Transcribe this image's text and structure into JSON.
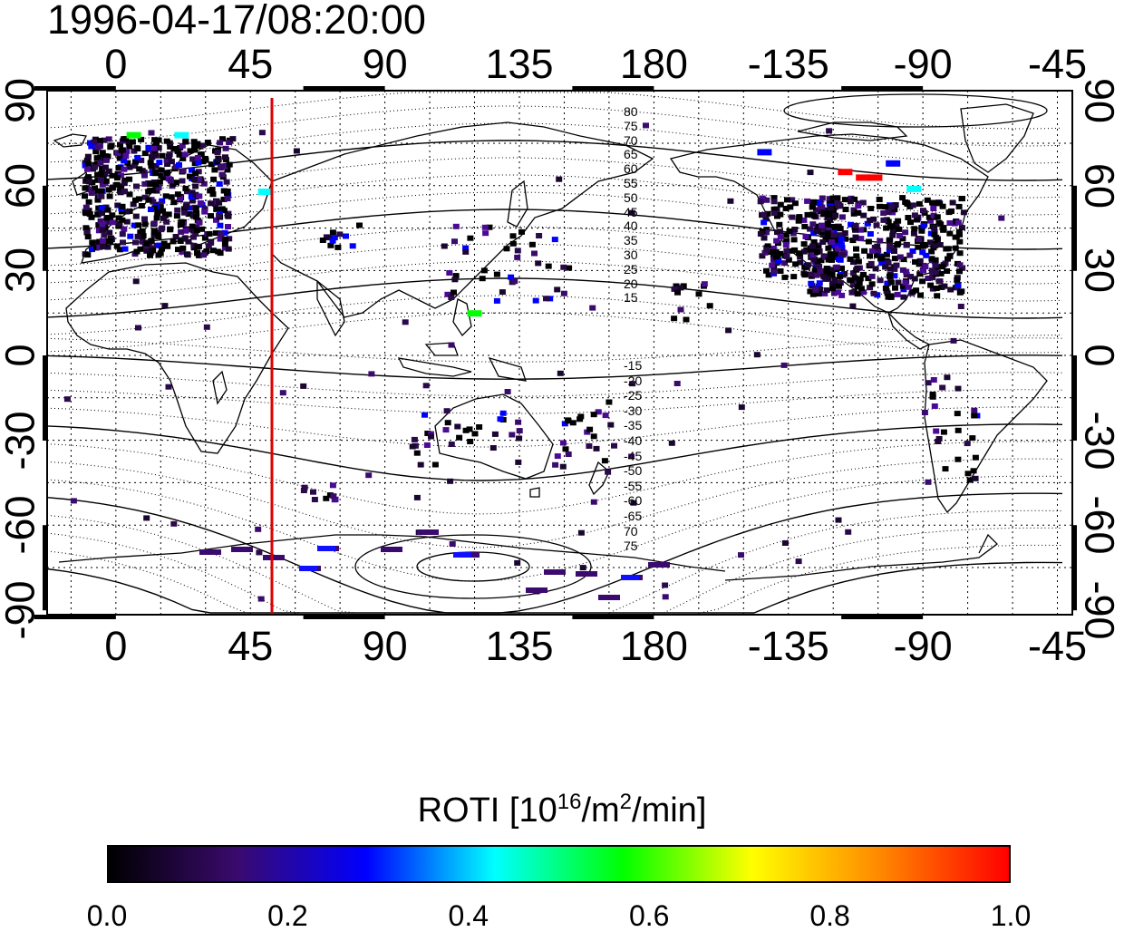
{
  "title": "1996-04-17/08:20:00",
  "longitude_labels": [
    "0",
    "45",
    "90",
    "135",
    "180",
    "-135",
    "-90",
    "-45"
  ],
  "latitude_labels": [
    "90",
    "60",
    "30",
    "0",
    "-30",
    "-60",
    "-90"
  ],
  "contour_labels_north": [
    "80",
    "75",
    "70",
    "65",
    "60",
    "55",
    "50",
    "45",
    "40",
    "35",
    "30",
    "25",
    "20",
    "15"
  ],
  "contour_labels_south": [
    "-15",
    "-20",
    "-25",
    "-30",
    "-35",
    "-40",
    "-45",
    "-50",
    "-55",
    "-60",
    "-65",
    "70",
    "75"
  ],
  "marker": {
    "longitude": 57,
    "color": "#e00000"
  },
  "colorbar": {
    "title_prefix": "ROTI  [10",
    "title_sup1": "16",
    "title_mid": "/m",
    "title_sup2": "2",
    "title_suffix": "/min]",
    "tick_labels": [
      "0.0",
      "0.2",
      "0.4",
      "0.6",
      "0.8",
      "1.0"
    ],
    "gradient": [
      "#000000",
      "#3a0a6e",
      "#0000ff",
      "#00ffff",
      "#00ff00",
      "#ffff00",
      "#ff8800",
      "#ff0000"
    ]
  },
  "chart_data": {
    "type": "heatmap",
    "title": "1996-04-17/08:20:00",
    "xlabel": "",
    "ylabel": "",
    "xlim_longitude": [
      -23,
      320
    ],
    "ylim_latitude": [
      -90,
      90
    ],
    "colorbar_range": [
      0.0,
      1.0
    ],
    "colorbar_label": "ROTI  [10^16/m^2/min]",
    "high_value_points": [
      {
        "lon": -116,
        "lat": 65,
        "value": 0.98
      },
      {
        "lon": -110,
        "lat": 63,
        "value": 0.98
      },
      {
        "lon": -106,
        "lat": 63,
        "value": 0.98
      },
      {
        "lon": -93,
        "lat": 59,
        "value": 0.45
      },
      {
        "lon": 6,
        "lat": 78,
        "value": 0.5
      },
      {
        "lon": 22,
        "lat": 78,
        "value": 0.4
      },
      {
        "lon": 50,
        "lat": 58,
        "value": 0.4
      },
      {
        "lon": 120,
        "lat": 15,
        "value": 0.55
      },
      {
        "lon": -143,
        "lat": 72,
        "value": 0.25
      },
      {
        "lon": -100,
        "lat": 68,
        "value": 0.25
      }
    ]
  }
}
